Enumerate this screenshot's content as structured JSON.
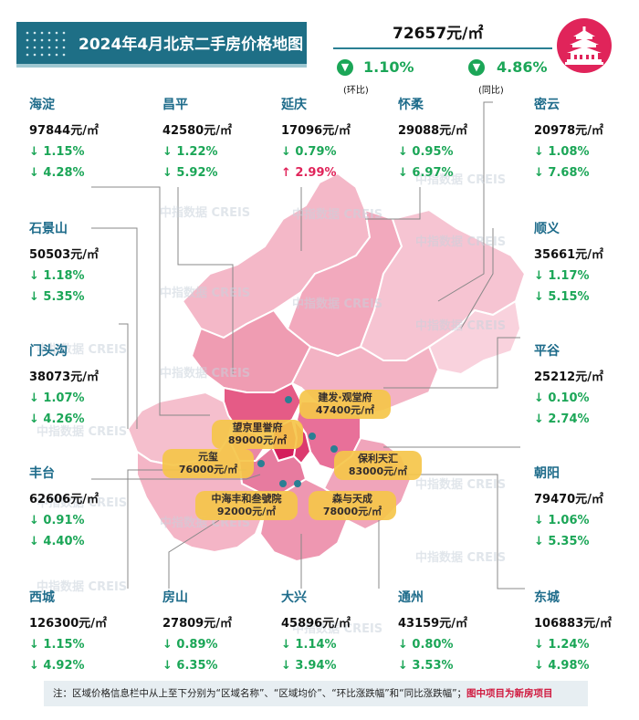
{
  "title": "2024年4月北京二手房价格地图",
  "overall": {
    "price": "72657元/㎡",
    "mom": "1.10%",
    "mom_label": "(环比)",
    "yoy": "4.86%",
    "yoy_label": "(同比)"
  },
  "districts": [
    {
      "name": "海淀",
      "price": "97844元/㎡",
      "mom": "↓ 1.15%",
      "yoy": "↓ 4.28%",
      "yoy_up": false
    },
    {
      "name": "昌平",
      "price": "42580元/㎡",
      "mom": "↓ 1.22%",
      "yoy": "↓ 5.92%",
      "yoy_up": false
    },
    {
      "name": "延庆",
      "price": "17096元/㎡",
      "mom": "↓ 0.79%",
      "yoy": "↑ 2.99%",
      "yoy_up": true
    },
    {
      "name": "怀柔",
      "price": "29088元/㎡",
      "mom": "↓ 0.95%",
      "yoy": "↓ 6.97%",
      "yoy_up": false
    },
    {
      "name": "密云",
      "price": "20978元/㎡",
      "mom": "↓ 1.08%",
      "yoy": "↓ 7.68%",
      "yoy_up": false
    },
    {
      "name": "石景山",
      "price": "50503元/㎡",
      "mom": "↓ 1.18%",
      "yoy": "↓ 5.35%",
      "yoy_up": false
    },
    {
      "name": "顺义",
      "price": "35661元/㎡",
      "mom": "↓ 1.17%",
      "yoy": "↓ 5.15%",
      "yoy_up": false
    },
    {
      "name": "门头沟",
      "price": "38073元/㎡",
      "mom": "↓ 1.07%",
      "yoy": "↓ 4.26%",
      "yoy_up": false
    },
    {
      "name": "平谷",
      "price": "25212元/㎡",
      "mom": "↓ 0.10%",
      "yoy": "↓ 2.74%",
      "yoy_up": false
    },
    {
      "name": "丰台",
      "price": "62606元/㎡",
      "mom": "↓ 0.91%",
      "yoy": "↓ 4.40%",
      "yoy_up": false
    },
    {
      "name": "朝阳",
      "price": "79470元/㎡",
      "mom": "↓ 1.06%",
      "yoy": "↓ 5.35%",
      "yoy_up": false
    },
    {
      "name": "西城",
      "price": "126300元/㎡",
      "mom": "↓ 1.15%",
      "yoy": "↓ 4.92%",
      "yoy_up": false
    },
    {
      "name": "房山",
      "price": "27809元/㎡",
      "mom": "↓ 0.89%",
      "yoy": "↓ 6.35%",
      "yoy_up": false
    },
    {
      "name": "大兴",
      "price": "45896元/㎡",
      "mom": "↓ 1.14%",
      "yoy": "↓ 3.94%",
      "yoy_up": false
    },
    {
      "name": "通州",
      "price": "43159元/㎡",
      "mom": "↓ 0.80%",
      "yoy": "↓ 3.53%",
      "yoy_up": false
    },
    {
      "name": "东城",
      "price": "106883元/㎡",
      "mom": "↓ 1.24%",
      "yoy": "↓ 4.98%",
      "yoy_up": false
    }
  ],
  "projects": [
    {
      "name": "建发·观堂府",
      "price": "47400元/㎡"
    },
    {
      "name": "望京里誉府",
      "price": "89000元/㎡"
    },
    {
      "name": "元玺",
      "price": "76000元/㎡"
    },
    {
      "name": "保利天汇",
      "price": "83000元/㎡"
    },
    {
      "name": "中海丰和叁號院",
      "price": "92000元/㎡"
    },
    {
      "name": "森与天成",
      "price": "78000元/㎡"
    }
  ],
  "watermark": "中指数据 CREIS",
  "note": {
    "text": "注：区域价格信息栏中从上至下分别为“区域名称”、“区域均价”、“环比涨跌幅”和“同比涨跌幅”；",
    "red": "图中项目为新房项目"
  },
  "colors": {
    "title_bg": "#1e6f86",
    "down": "#1ba657",
    "up": "#e0245a",
    "district_name": "#1d6b8a",
    "logo": "#e0245a",
    "project_label": "#f6c64a"
  }
}
